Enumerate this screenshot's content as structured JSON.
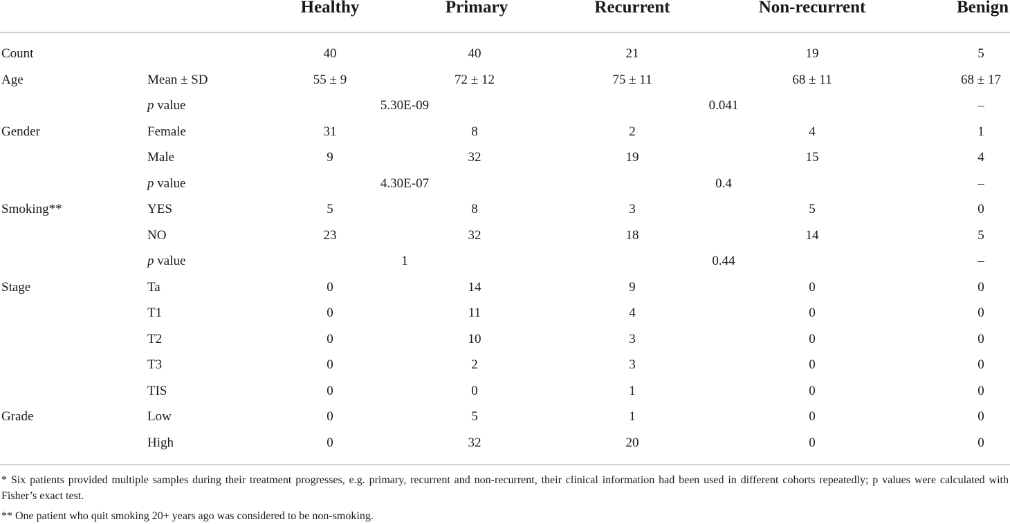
{
  "headers": [
    "Healthy",
    "Primary",
    "Recurrent",
    "Non-recurrent",
    "Benign"
  ],
  "rows": [
    {
      "label": "Count",
      "sub": "",
      "values": [
        "40",
        "40",
        "21",
        "19",
        "5"
      ]
    },
    {
      "label": "Age",
      "sub": "Mean ± SD",
      "values": [
        "55 ± 9",
        "72 ± 12",
        "75 ± 11",
        "68 ± 11",
        "68 ± 17"
      ]
    },
    {
      "label": "",
      "sub_italic": "p",
      "sub": " value",
      "pvals": [
        "5.30E-09",
        "0.041",
        "–"
      ]
    },
    {
      "label": "Gender",
      "sub": "Female",
      "values": [
        "31",
        "8",
        "2",
        "4",
        "1"
      ]
    },
    {
      "label": "",
      "sub": "Male",
      "values": [
        "9",
        "32",
        "19",
        "15",
        "4"
      ]
    },
    {
      "label": "",
      "sub_italic": "p",
      "sub": " value",
      "pvals": [
        "4.30E-07",
        "0.4",
        "–"
      ]
    },
    {
      "label": "Smoking**",
      "sub": "YES",
      "values": [
        "5",
        "8",
        "3",
        "5",
        "0"
      ]
    },
    {
      "label": "",
      "sub": "NO",
      "values": [
        "23",
        "32",
        "18",
        "14",
        "5"
      ]
    },
    {
      "label": "",
      "sub_italic": "p",
      "sub": " value",
      "pvals": [
        "1",
        "0.44",
        "–"
      ]
    },
    {
      "label": "Stage",
      "sub": "Ta",
      "values": [
        "0",
        "14",
        "9",
        "0",
        "0"
      ]
    },
    {
      "label": "",
      "sub": "T1",
      "values": [
        "0",
        "11",
        "4",
        "0",
        "0"
      ]
    },
    {
      "label": "",
      "sub": "T2",
      "values": [
        "0",
        "10",
        "3",
        "0",
        "0"
      ]
    },
    {
      "label": "",
      "sub": "T3",
      "values": [
        "0",
        "2",
        "3",
        "0",
        "0"
      ]
    },
    {
      "label": "",
      "sub": "TIS",
      "values": [
        "0",
        "0",
        "1",
        "0",
        "0"
      ]
    },
    {
      "label": "Grade",
      "sub": "Low",
      "values": [
        "0",
        "5",
        "1",
        "0",
        "0"
      ]
    },
    {
      "label": "",
      "sub": "High",
      "values": [
        "0",
        "32",
        "20",
        "0",
        "0"
      ]
    }
  ],
  "footnotes": [
    "* Six patients provided multiple samples during their treatment progresses, e.g. primary, recurrent and non-recurrent, their clinical information had been used in different cohorts repeatedly; p values were calculated with Fisher’s exact test.",
    "** One patient who quit smoking 20+ years ago was considered to be non-smoking."
  ]
}
